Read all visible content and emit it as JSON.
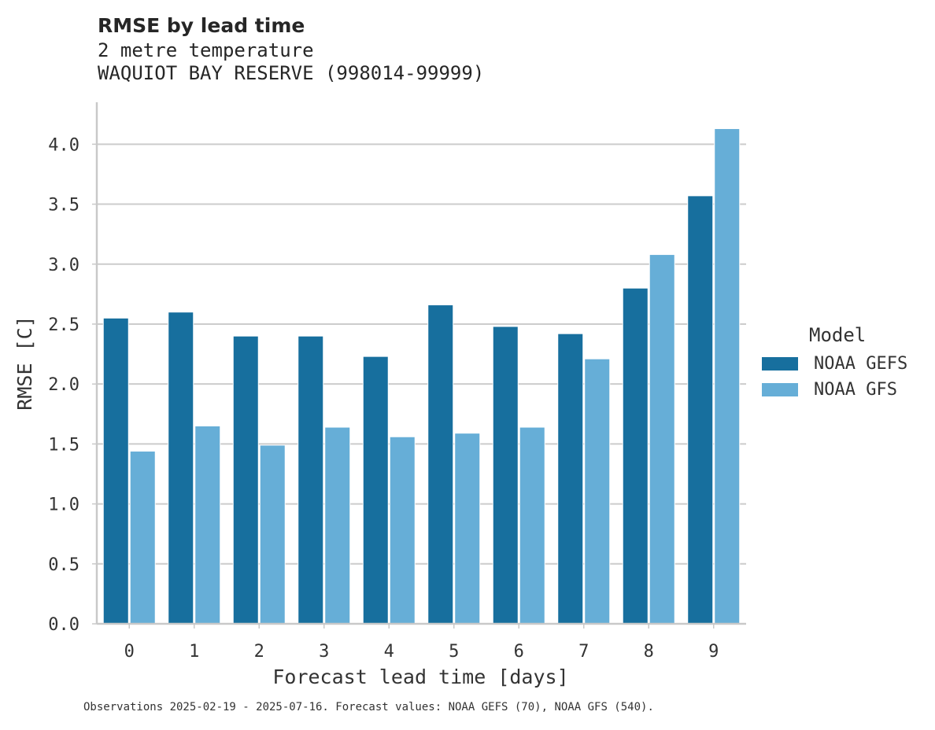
{
  "titles": {
    "title": "RMSE by lead time",
    "subtitle": "2 metre temperature",
    "location": "WAQUIOT BAY RESERVE (998014-99999)"
  },
  "footer": "Observations 2025-02-19 - 2025-07-16. Forecast values: NOAA GEFS (70), NOAA GFS (540).",
  "legend": {
    "title": "Model"
  },
  "colors": {
    "gefs": "#176f9e",
    "gfs": "#66aed7",
    "grid": "#cccccc",
    "axis": "#c9c9c9",
    "text": "#333333"
  },
  "chart_data": {
    "type": "bar",
    "categories": [
      "0",
      "1",
      "2",
      "3",
      "4",
      "5",
      "6",
      "7",
      "8",
      "9"
    ],
    "series": [
      {
        "name": "NOAA GEFS",
        "values": [
          2.55,
          2.6,
          2.4,
          2.4,
          2.23,
          2.66,
          2.48,
          2.42,
          2.8,
          3.57
        ]
      },
      {
        "name": "NOAA GFS",
        "values": [
          1.44,
          1.65,
          1.49,
          1.64,
          1.56,
          1.59,
          1.64,
          2.21,
          3.08,
          4.13
        ]
      }
    ],
    "xlabel": "Forecast lead time [days]",
    "ylabel": "RMSE [C]",
    "ylim": [
      0,
      4.35
    ],
    "yticks": [
      "0.0",
      "0.5",
      "1.0",
      "1.5",
      "2.0",
      "2.5",
      "3.0",
      "3.5",
      "4.0"
    ],
    "grid": "horizontal",
    "legend_position": "right"
  }
}
